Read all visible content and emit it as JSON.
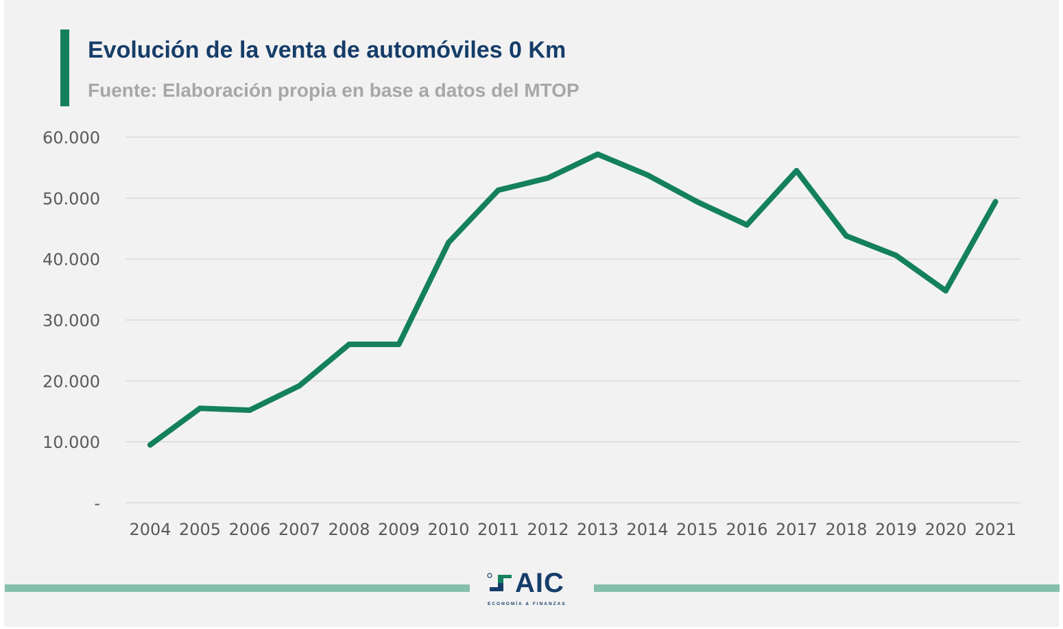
{
  "header": {
    "title": "Evolución de la venta de automóviles 0 Km",
    "subtitle": "Fuente: Elaboración propia en base a datos del MTOP"
  },
  "logo": {
    "text": "AIC",
    "tagline": "ECONOMÍA & FINANZAS"
  },
  "colors": {
    "line": "#14805e",
    "title": "#163d69",
    "subtitle": "#a7a7a7",
    "accent_bar": "#14805e",
    "footer_line": "#86bfab",
    "grid": "#d9d9d9",
    "tick_text": "#595959"
  },
  "chart_data": {
    "type": "line",
    "title": "Evolución de la venta de automóviles 0 Km",
    "subtitle": "Fuente: Elaboración propia en base a datos del MTOP",
    "xlabel": "",
    "ylabel": "",
    "categories": [
      "2004",
      "2005",
      "2006",
      "2007",
      "2008",
      "2009",
      "2010",
      "2011",
      "2012",
      "2013",
      "2014",
      "2015",
      "2016",
      "2017",
      "2018",
      "2019",
      "2020",
      "2021"
    ],
    "series": [
      {
        "values": [
          9500,
          15500,
          15200,
          19200,
          26000,
          26000,
          42700,
          51300,
          53300,
          57200,
          53800,
          49400,
          45600,
          54500,
          43800,
          40600,
          34800,
          49400
        ]
      }
    ],
    "ylim": [
      0,
      60000
    ],
    "yticks": [
      0,
      10000,
      20000,
      30000,
      40000,
      50000,
      60000
    ],
    "ytick_labels": [
      "-",
      "10.000",
      "20.000",
      "30.000",
      "40.000",
      "50.000",
      "60.000"
    ],
    "grid": true,
    "legend": "none"
  }
}
